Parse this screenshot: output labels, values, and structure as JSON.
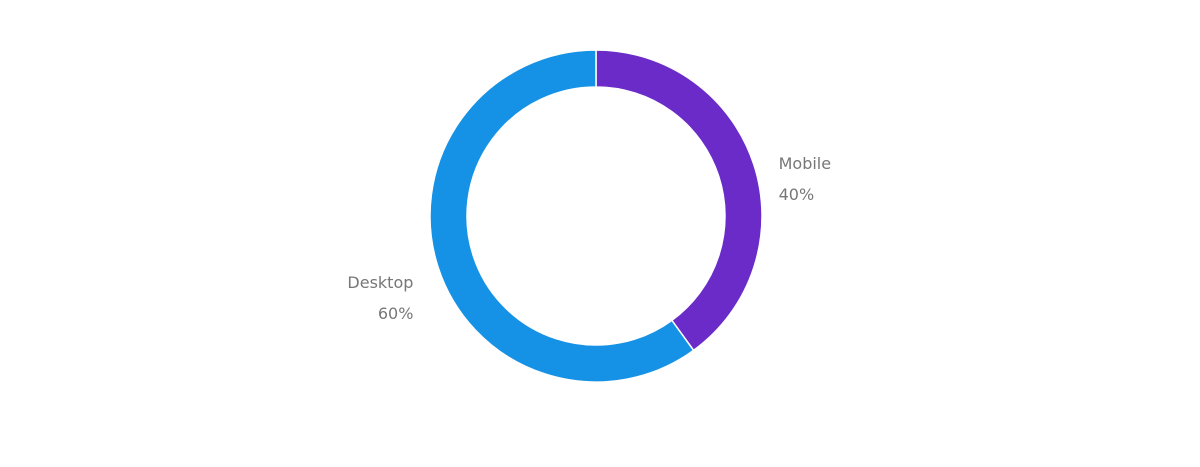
{
  "chart_data": {
    "type": "donut",
    "categories": [
      "Mobile",
      "Desktop"
    ],
    "values": [
      40,
      60
    ],
    "value_labels": [
      "40%",
      "60%"
    ],
    "colors": [
      "#6a2bc8",
      "#1592e6"
    ]
  }
}
